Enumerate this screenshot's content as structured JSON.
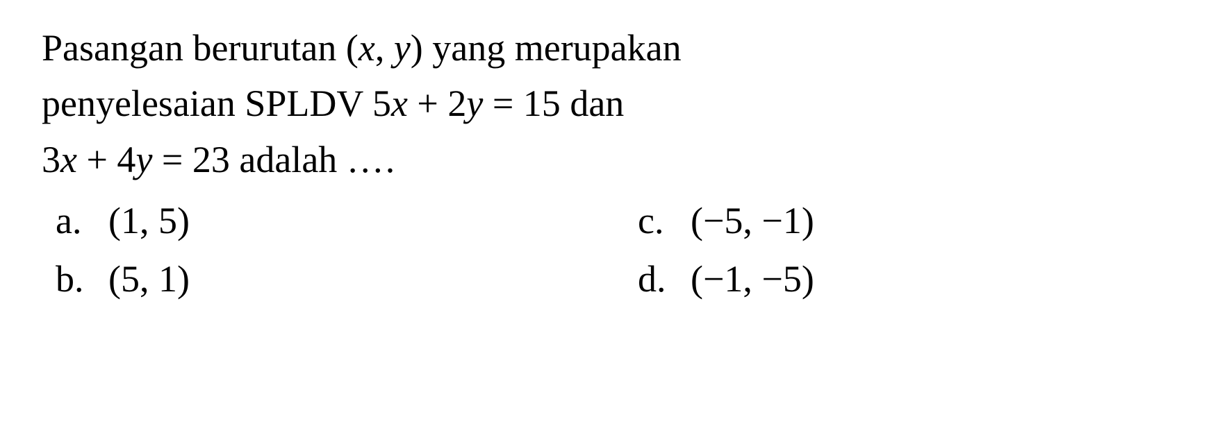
{
  "typography": {
    "font_family": "Times New Roman",
    "font_size_pt": 40,
    "color": "#000000",
    "background_color": "#ffffff",
    "line_height": 1.45
  },
  "stem": {
    "line1_pre": "Pasangan berurutan (",
    "line1_x": "x",
    "line1_comma": ", ",
    "line1_y": "y",
    "line1_post": ") yang merupakan",
    "line2_pre": "penyelesaian  SPLDV  ",
    "line2_eq1_a": "5",
    "line2_eq1_x": "x",
    "line2_eq1_b": " + 2",
    "line2_eq1_y": "y",
    "line2_eq1_c": " = 15",
    "line2_post": "  dan",
    "line3_eq2_a": "3",
    "line3_eq2_x": "x",
    "line3_eq2_b": " + 4",
    "line3_eq2_y": "y",
    "line3_eq2_c": " = 23",
    "line3_post": " adalah ",
    "line3_dots": "…."
  },
  "options": {
    "a": {
      "label": "a.",
      "text": "(1, 5)"
    },
    "b": {
      "label": "b.",
      "text": "(5, 1)"
    },
    "c": {
      "label": "c.",
      "text": "(−5, −1)"
    },
    "d": {
      "label": "d.",
      "text": "(−1, −5)"
    }
  }
}
